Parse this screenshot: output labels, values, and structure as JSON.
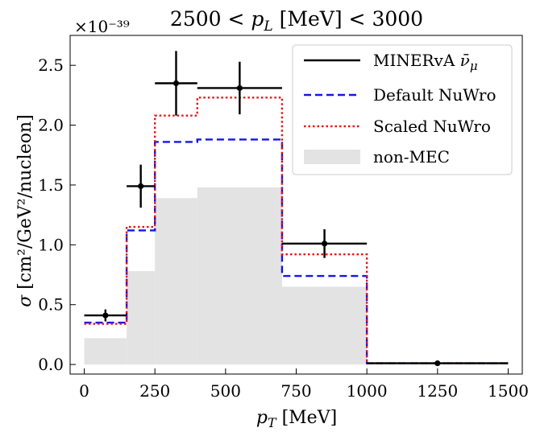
{
  "chart_data": {
    "type": "step-histogram",
    "title": "2500 < p_L [MeV] < 3000",
    "title_parts": {
      "left": "2500 < ",
      "var": "p",
      "sub": "L",
      "right": " [MeV] < 3000"
    },
    "xlabel": "p_T [MeV]",
    "xlabel_parts": {
      "var": "p",
      "sub": "T",
      "unit": " [MeV]"
    },
    "ylabel": "σ [cm²/GeV²/nucleon]",
    "ylabel_parts": {
      "sym": "σ",
      "unit": " [cm²/GeV²/nucleon]"
    },
    "y_offset": "×10⁻³⁹",
    "xlim": [
      -50,
      1550
    ],
    "ylim": [
      -0.08,
      2.75
    ],
    "xticks": [
      0,
      250,
      500,
      750,
      1000,
      1250,
      1500
    ],
    "xtick_labels": [
      "0",
      "250",
      "500",
      "750",
      "1000",
      "1250",
      "1500"
    ],
    "yticks": [
      0.0,
      0.5,
      1.0,
      1.5,
      2.0,
      2.5
    ],
    "ytick_labels": [
      "0.0",
      "0.5",
      "1.0",
      "1.5",
      "2.0",
      "2.5"
    ],
    "bin_edges": [
      0,
      150,
      250,
      400,
      700,
      1000,
      1500
    ],
    "legend_position": "upper-right",
    "series": [
      {
        "name": "non-MEC",
        "kind": "filled-step",
        "color": "#e3e3e3",
        "values": [
          0.22,
          0.78,
          1.39,
          1.48,
          0.65,
          0.0
        ]
      },
      {
        "name": "Default NuWro",
        "kind": "step",
        "style": "dashed",
        "color": "#1515e8",
        "values": [
          0.35,
          1.12,
          1.86,
          1.88,
          0.74,
          0.01
        ]
      },
      {
        "name": "Scaled NuWro",
        "kind": "step",
        "style": "dotted",
        "color": "#ee1111",
        "values": [
          0.34,
          1.15,
          2.08,
          2.23,
          0.92,
          0.01
        ]
      },
      {
        "name": "MINERvA ν̄_μ",
        "kind": "errorbar",
        "color": "#000000",
        "points": [
          {
            "x": 75,
            "y": 0.41,
            "xlo": 0,
            "xhi": 150,
            "yerr": 0.05
          },
          {
            "x": 200,
            "y": 1.49,
            "xlo": 150,
            "xhi": 250,
            "yerr": 0.18
          },
          {
            "x": 325,
            "y": 2.35,
            "xlo": 250,
            "xhi": 400,
            "yerr": 0.27
          },
          {
            "x": 550,
            "y": 2.31,
            "xlo": 400,
            "xhi": 700,
            "yerr": 0.22
          },
          {
            "x": 850,
            "y": 1.01,
            "xlo": 700,
            "xhi": 1000,
            "yerr": 0.12
          },
          {
            "x": 1250,
            "y": 0.01,
            "xlo": 1000,
            "xhi": 1500,
            "yerr": 0.0
          }
        ]
      }
    ],
    "legend": [
      {
        "label": "MINERvA ",
        "math": "ν̄",
        "sub": "μ",
        "kind": "errorbar"
      },
      {
        "label": "Default NuWro",
        "kind": "dashed"
      },
      {
        "label": "Scaled NuWro",
        "kind": "dotted"
      },
      {
        "label": "non-MEC",
        "kind": "fill"
      }
    ]
  }
}
